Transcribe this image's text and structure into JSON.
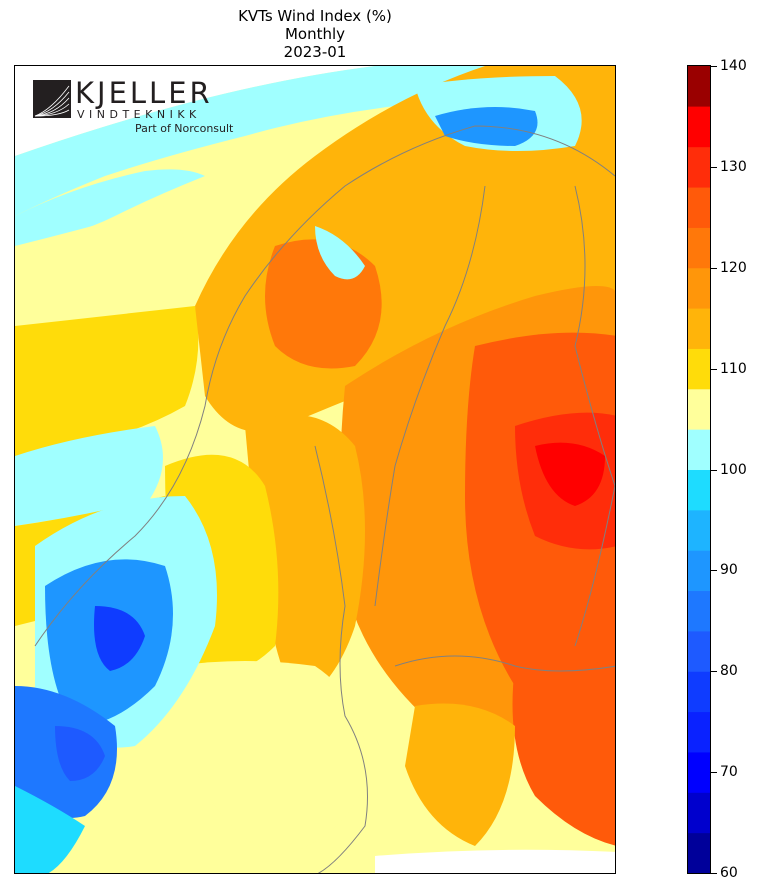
{
  "title": {
    "line1": "KVTs Wind Index (%)",
    "line2": "Monthly",
    "line3": "2023-01"
  },
  "logo": {
    "name": "KJELLER",
    "subname": "VINDTEKNIKK",
    "tagline": "Part of Norconsult"
  },
  "colorbar": {
    "min": 60,
    "max": 140,
    "step": 4,
    "tick_labels": [
      "60",
      "70",
      "80",
      "90",
      "100",
      "110",
      "120",
      "130",
      "140"
    ],
    "colors": [
      "#00009a",
      "#0000cd",
      "#0000ff",
      "#0a22ff",
      "#0f3cff",
      "#1e5aff",
      "#1e78ff",
      "#1e96ff",
      "#1eb4ff",
      "#1edcff",
      "#a0ffff",
      "#ffff9b",
      "#ffdc0a",
      "#ffb40a",
      "#ff960a",
      "#ff780a",
      "#ff5a0a",
      "#ff2d0a",
      "#ff0000",
      "#cd0000"
    ],
    "overflow_color": "#9a0000"
  },
  "map_regions": {
    "sea_west": "#ffff9b",
    "norway_coast_low": "#1eb4ff",
    "norway_south_high": "#0f3cff",
    "sweden_central": "#ffdc0a",
    "finland_west": "#ffb40a",
    "finland_east": "#ff5a0a",
    "russia_max": "#ff0000",
    "north_cape": "#a0ffff",
    "border_color": "#808080"
  }
}
